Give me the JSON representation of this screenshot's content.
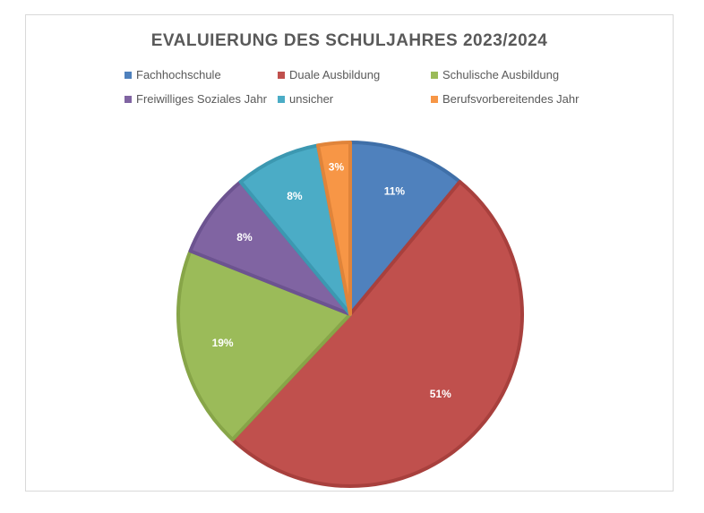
{
  "chart_data": {
    "type": "pie",
    "title": "EVALUIERUNG DES SCHULJAHRES 2023/2024",
    "legend_position": "top",
    "categories": [
      "Fachhochschule",
      "Duale Ausbildung",
      "Schulische Ausbildung",
      "Freiwilliges Soziales Jahr",
      "unsicher",
      "Berufsvorbereitendes Jahr"
    ],
    "values": [
      11,
      51,
      19,
      8,
      8,
      3
    ],
    "labels": [
      "11%",
      "51%",
      "19%",
      "8%",
      "8%",
      "3%"
    ],
    "colors": [
      "#4f81bd",
      "#c0504d",
      "#9bbb59",
      "#8064a2",
      "#4bacc6",
      "#f79646"
    ],
    "border_colors": [
      "#3f6fa8",
      "#a8403d",
      "#87a548",
      "#6c5390",
      "#3c98b1",
      "#e0843a"
    ]
  }
}
